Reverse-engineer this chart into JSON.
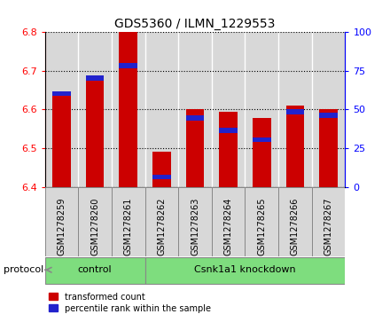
{
  "title": "GDS5360 / ILMN_1229553",
  "samples": [
    "GSM1278259",
    "GSM1278260",
    "GSM1278261",
    "GSM1278262",
    "GSM1278263",
    "GSM1278264",
    "GSM1278265",
    "GSM1278266",
    "GSM1278267"
  ],
  "transformed_counts": [
    6.64,
    6.685,
    6.8,
    6.49,
    6.6,
    6.595,
    6.578,
    6.61,
    6.602
  ],
  "percentile_ranks": [
    62,
    72,
    80,
    8,
    46,
    38,
    32,
    50,
    48
  ],
  "ylim_left": [
    6.4,
    6.8
  ],
  "ylim_right": [
    0,
    100
  ],
  "yticks_left": [
    6.4,
    6.5,
    6.6,
    6.7,
    6.8
  ],
  "yticks_right": [
    0,
    25,
    50,
    75,
    100
  ],
  "bar_color_red": "#cc0000",
  "bar_color_blue": "#2222cc",
  "control_count": 3,
  "knockdown_count": 6,
  "protocol_label": "protocol",
  "control_label": "control",
  "knockdown_label": "Csnk1a1 knockdown",
  "legend_red": "transformed count",
  "legend_blue": "percentile rank within the sample",
  "bar_width": 0.55,
  "panel_color": "#d8d8d8",
  "protocol_bg": "#7edd7e",
  "ybase": 6.4
}
